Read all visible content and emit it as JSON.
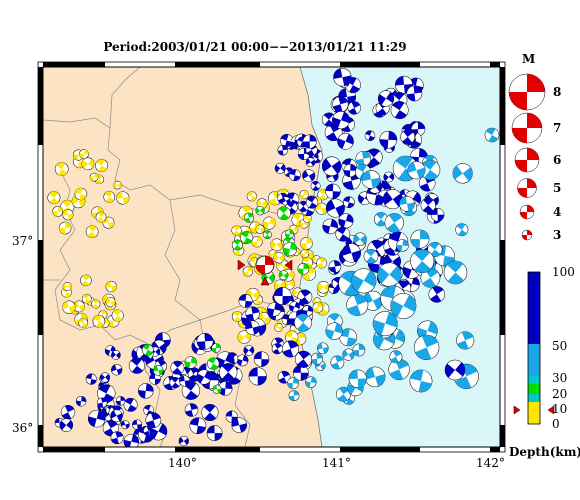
{
  "title": "Period:2003/01/21 00:00−−2013/01/21 11:29",
  "map": {
    "lon_labels": [
      "140°",
      "141°",
      "142°"
    ],
    "lat_labels": [
      "37°",
      "36°"
    ],
    "colors": {
      "land": "#fbe3c4",
      "sea": "#d9f6f8",
      "shallow": "#ffe600",
      "mid20": "#00dd00",
      "mid30": "#00c8c8",
      "mid50": "#1aa7e8",
      "deep": "#0000c0",
      "epicenter": "#e00000"
    }
  },
  "legend_magnitude": {
    "title": "M",
    "items": [
      "8",
      "7",
      "6",
      "5",
      "4",
      "3"
    ]
  },
  "legend_depth": {
    "ticks": [
      "100",
      "50",
      "30",
      "20",
      "10",
      "0"
    ],
    "unit_label": "Depth(km)"
  }
}
